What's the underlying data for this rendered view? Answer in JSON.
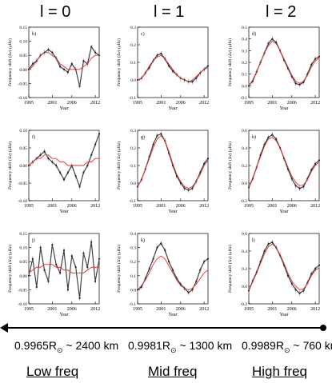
{
  "column_titles": [
    "l = 0",
    "l = 1",
    "l = 2"
  ],
  "depth_labels": [
    {
      "prefix": "0.9965R",
      "suffix": " ~ 2400 km"
    },
    {
      "prefix": "0.9981R",
      "suffix": " ~ 1300 km"
    },
    {
      "prefix": "0.9989R",
      "suffix": " ~ 760 km"
    }
  ],
  "sun_symbol": "⊙",
  "freq_labels": [
    "Low freq",
    "Mid freq",
    "High freq"
  ],
  "axis": {
    "xlabel": "Year",
    "ylabel": "Frequency shift (Δν) (μHz)",
    "xticks": [
      "1995",
      "2001",
      "2006",
      "2012"
    ]
  },
  "colors": {
    "data": "#333333",
    "model": "#e03030",
    "axis": "#000000"
  },
  "chart_data": [
    {
      "id": "b",
      "type": "line",
      "col": 0,
      "row": 0,
      "ylim": [
        -0.1,
        0.15
      ],
      "yticks": [
        "-0.10",
        "-0.05",
        "0.00",
        "0.05",
        "0.10",
        "0.15"
      ],
      "x": [
        1995,
        1996,
        1997,
        1998,
        1999,
        2000,
        2001,
        2002,
        2003,
        2004,
        2005,
        2006,
        2007,
        2008,
        2009,
        2010,
        2011,
        2012,
        2013
      ],
      "series": [
        {
          "role": "data",
          "values": [
            0.0,
            0.02,
            0.03,
            0.05,
            0.06,
            0.07,
            0.06,
            0.04,
            0.01,
            0.0,
            -0.01,
            0.02,
            0.0,
            -0.06,
            0.03,
            0.02,
            0.08,
            0.06,
            0.05
          ]
        },
        {
          "role": "model",
          "values": [
            0.0,
            0.01,
            0.03,
            0.05,
            0.06,
            0.06,
            0.05,
            0.04,
            0.02,
            0.01,
            0.0,
            0.0,
            0.0,
            0.0,
            0.01,
            0.02,
            0.04,
            0.05,
            0.05
          ]
        }
      ]
    },
    {
      "id": "c",
      "type": "line",
      "col": 1,
      "row": 0,
      "ylim": [
        -0.1,
        0.3
      ],
      "yticks": [
        "-0.1",
        "0.0",
        "0.1",
        "0.2",
        "0.3"
      ],
      "x": [
        1995,
        1996,
        1997,
        1998,
        1999,
        2000,
        2001,
        2002,
        2003,
        2004,
        2005,
        2006,
        2007,
        2008,
        2009,
        2010,
        2011,
        2012,
        2013
      ],
      "series": [
        {
          "role": "data",
          "values": [
            0.0,
            0.01,
            0.04,
            0.07,
            0.11,
            0.14,
            0.15,
            0.12,
            0.08,
            0.05,
            0.03,
            0.01,
            0.0,
            -0.01,
            -0.01,
            0.01,
            0.04,
            0.06,
            0.08
          ]
        },
        {
          "role": "model",
          "values": [
            0.0,
            0.01,
            0.04,
            0.08,
            0.11,
            0.13,
            0.14,
            0.12,
            0.09,
            0.06,
            0.03,
            0.01,
            0.0,
            -0.01,
            0.0,
            0.02,
            0.04,
            0.06,
            0.07
          ]
        }
      ]
    },
    {
      "id": "d",
      "type": "line",
      "col": 2,
      "row": 0,
      "ylim": [
        -0.1,
        0.5
      ],
      "yticks": [
        "-0.1",
        "0.0",
        "0.1",
        "0.2",
        "0.3",
        "0.4",
        "0.5"
      ],
      "x": [
        1995,
        1996,
        1997,
        1998,
        1999,
        2000,
        2001,
        2002,
        2003,
        2004,
        2005,
        2006,
        2007,
        2008,
        2009,
        2010,
        2011,
        2012,
        2013
      ],
      "series": [
        {
          "role": "data",
          "values": [
            0.0,
            0.04,
            0.12,
            0.2,
            0.28,
            0.36,
            0.4,
            0.37,
            0.3,
            0.22,
            0.15,
            0.08,
            0.02,
            0.01,
            0.03,
            0.1,
            0.18,
            0.23,
            0.25
          ]
        },
        {
          "role": "model",
          "values": [
            0.0,
            0.05,
            0.12,
            0.2,
            0.28,
            0.34,
            0.38,
            0.36,
            0.3,
            0.23,
            0.16,
            0.09,
            0.04,
            0.02,
            0.04,
            0.09,
            0.16,
            0.21,
            0.24
          ]
        }
      ]
    },
    {
      "id": "f",
      "type": "line",
      "col": 0,
      "row": 1,
      "ylim": [
        -0.1,
        0.1
      ],
      "yticks": [
        "-0.10",
        "-0.05",
        "0.00",
        "0.05",
        "0.10"
      ],
      "x": [
        1995,
        1996,
        1997,
        1998,
        1999,
        2000,
        2001,
        2002,
        2003,
        2004,
        2005,
        2006,
        2007,
        2008,
        2009,
        2010,
        2011,
        2012,
        2013
      ],
      "series": [
        {
          "role": "data",
          "values": [
            0.0,
            0.01,
            0.02,
            0.03,
            0.04,
            0.02,
            0.01,
            0.0,
            -0.02,
            -0.04,
            -0.02,
            0.0,
            -0.03,
            -0.06,
            -0.02,
            0.0,
            0.03,
            0.06,
            0.09
          ]
        },
        {
          "role": "model",
          "values": [
            0.0,
            0.01,
            0.02,
            0.02,
            0.03,
            0.03,
            0.02,
            0.02,
            0.01,
            0.01,
            0.0,
            0.0,
            0.0,
            0.0,
            0.0,
            0.01,
            0.01,
            0.02,
            0.02
          ]
        }
      ]
    },
    {
      "id": "g",
      "type": "line",
      "col": 1,
      "row": 1,
      "ylim": [
        -0.1,
        0.3
      ],
      "yticks": [
        "-0.1",
        "0.0",
        "0.1",
        "0.2",
        "0.3"
      ],
      "x": [
        1995,
        1996,
        1997,
        1998,
        1999,
        2000,
        2001,
        2002,
        2003,
        2004,
        2005,
        2006,
        2007,
        2008,
        2009,
        2010,
        2011,
        2012,
        2013
      ],
      "series": [
        {
          "role": "data",
          "values": [
            -0.02,
            0.02,
            0.08,
            0.15,
            0.22,
            0.27,
            0.28,
            0.24,
            0.17,
            0.1,
            0.04,
            0.0,
            -0.03,
            -0.04,
            -0.03,
            0.01,
            0.06,
            0.11,
            0.14
          ]
        },
        {
          "role": "model",
          "values": [
            -0.02,
            0.02,
            0.08,
            0.14,
            0.2,
            0.25,
            0.27,
            0.24,
            0.18,
            0.11,
            0.05,
            0.01,
            -0.02,
            -0.03,
            -0.02,
            0.01,
            0.05,
            0.1,
            0.13
          ]
        }
      ]
    },
    {
      "id": "h",
      "type": "line",
      "col": 2,
      "row": 1,
      "ylim": [
        -0.2,
        0.6
      ],
      "yticks": [
        "-0.2",
        "0.0",
        "0.2",
        "0.4",
        "0.6"
      ],
      "x": [
        1995,
        1996,
        1997,
        1998,
        1999,
        2000,
        2001,
        2002,
        2003,
        2004,
        2005,
        2006,
        2007,
        2008,
        2009,
        2010,
        2011,
        2012,
        2013
      ],
      "series": [
        {
          "role": "data",
          "values": [
            -0.05,
            0.05,
            0.18,
            0.32,
            0.44,
            0.52,
            0.55,
            0.5,
            0.4,
            0.28,
            0.16,
            0.05,
            -0.03,
            -0.06,
            -0.04,
            0.05,
            0.15,
            0.22,
            0.26
          ]
        },
        {
          "role": "model",
          "values": [
            -0.05,
            0.06,
            0.18,
            0.3,
            0.42,
            0.5,
            0.52,
            0.48,
            0.4,
            0.29,
            0.18,
            0.08,
            0.01,
            -0.03,
            -0.02,
            0.04,
            0.13,
            0.2,
            0.24
          ]
        }
      ]
    },
    {
      "id": "j",
      "type": "line",
      "col": 0,
      "row": 2,
      "ylim": [
        -0.1,
        0.15
      ],
      "yticks": [
        "-0.10",
        "-0.05",
        "0.00",
        "0.05",
        "0.10",
        "0.15"
      ],
      "x": [
        1995,
        1996,
        1997,
        1998,
        1999,
        2000,
        2001,
        2002,
        2003,
        2004,
        2005,
        2006,
        2007,
        2008,
        2009,
        2010,
        2011,
        2012,
        2013
      ],
      "series": [
        {
          "role": "data",
          "values": [
            0.0,
            0.06,
            -0.04,
            0.1,
            0.02,
            -0.02,
            0.11,
            0.04,
            0.01,
            0.09,
            -0.05,
            0.07,
            0.03,
            -0.08,
            0.08,
            0.03,
            0.12,
            -0.02,
            0.06
          ]
        },
        {
          "role": "model",
          "values": [
            0.01,
            0.02,
            0.03,
            0.03,
            0.04,
            0.04,
            0.04,
            0.03,
            0.03,
            0.02,
            0.02,
            0.01,
            0.01,
            0.01,
            0.01,
            0.02,
            0.03,
            0.03,
            0.03
          ]
        }
      ]
    },
    {
      "id": "k",
      "type": "line",
      "col": 1,
      "row": 2,
      "ylim": [
        -0.1,
        0.4
      ],
      "yticks": [
        "-0.1",
        "0.0",
        "0.1",
        "0.2",
        "0.3",
        "0.4"
      ],
      "x": [
        1995,
        1996,
        1997,
        1998,
        1999,
        2000,
        2001,
        2002,
        2003,
        2004,
        2005,
        2006,
        2007,
        2008,
        2009,
        2010,
        2011,
        2012,
        2013
      ],
      "series": [
        {
          "role": "data",
          "values": [
            0.0,
            0.02,
            0.08,
            0.15,
            0.22,
            0.3,
            0.33,
            0.28,
            0.2,
            0.14,
            0.08,
            0.04,
            0.01,
            -0.02,
            0.0,
            0.06,
            0.14,
            0.2,
            0.22
          ]
        },
        {
          "role": "model",
          "values": [
            0.0,
            0.03,
            0.07,
            0.12,
            0.18,
            0.22,
            0.24,
            0.22,
            0.17,
            0.12,
            0.07,
            0.03,
            0.01,
            0.0,
            0.01,
            0.04,
            0.08,
            0.12,
            0.14
          ]
        }
      ]
    },
    {
      "id": "l",
      "type": "line",
      "col": 2,
      "row": 2,
      "ylim": [
        -0.2,
        0.6
      ],
      "yticks": [
        "-0.2",
        "0.0",
        "0.2",
        "0.4",
        "0.6"
      ],
      "x": [
        1995,
        1996,
        1997,
        1998,
        1999,
        2000,
        2001,
        2002,
        2003,
        2004,
        2005,
        2006,
        2007,
        2008,
        2009,
        2010,
        2011,
        2012,
        2013
      ],
      "series": [
        {
          "role": "data",
          "values": [
            -0.05,
            0.06,
            0.16,
            0.28,
            0.4,
            0.48,
            0.5,
            0.44,
            0.35,
            0.24,
            0.12,
            0.03,
            -0.04,
            -0.08,
            -0.05,
            0.04,
            0.14,
            0.2,
            0.24
          ]
        },
        {
          "role": "model",
          "values": [
            -0.05,
            0.05,
            0.15,
            0.26,
            0.37,
            0.45,
            0.48,
            0.44,
            0.36,
            0.26,
            0.15,
            0.06,
            0.0,
            -0.04,
            -0.03,
            0.03,
            0.12,
            0.18,
            0.21
          ]
        }
      ]
    }
  ]
}
